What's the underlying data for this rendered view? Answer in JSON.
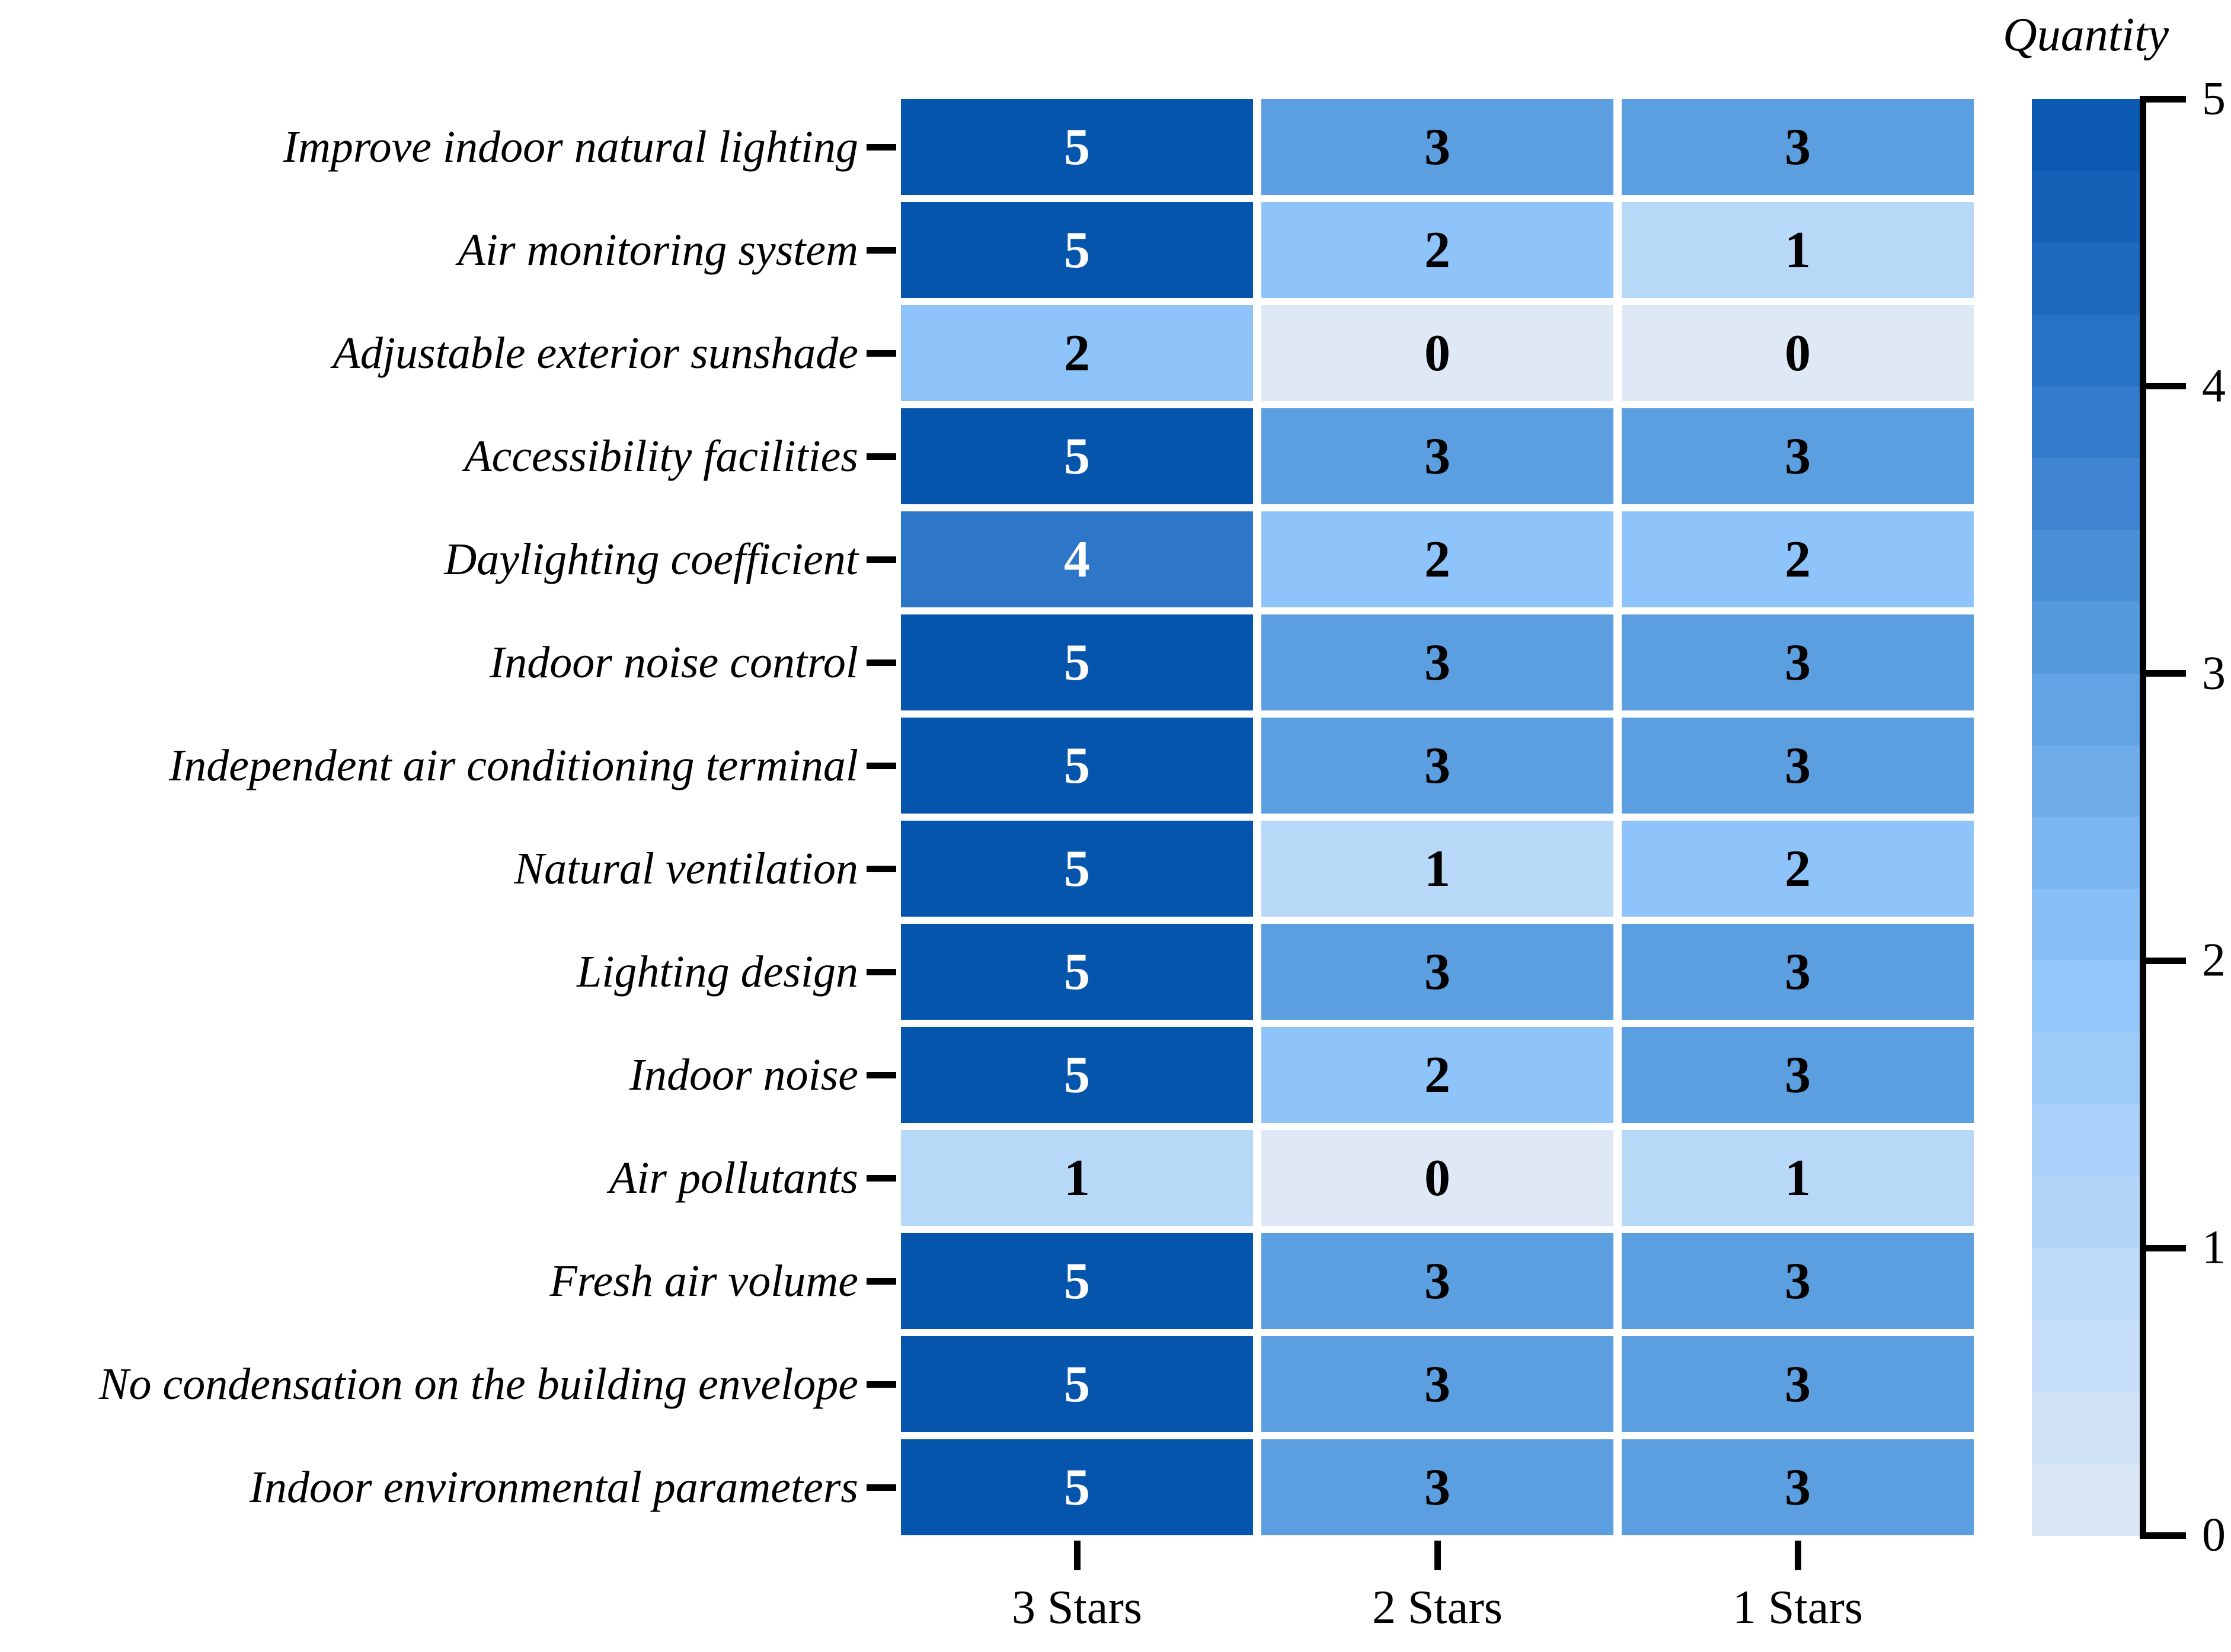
{
  "chart_data": {
    "type": "heatmap",
    "colorbar_label": "Quantity",
    "columns": [
      "3 Stars",
      "2 Stars",
      "1 Stars"
    ],
    "rows": [
      "Improve indoor natural lighting",
      "Air monitoring system",
      "Adjustable exterior sunshade",
      "Accessibility facilities",
      "Daylighting coefficient",
      "Indoor noise control",
      "Independent air conditioning terminal",
      "Natural ventilation",
      "Lighting design",
      "Indoor noise",
      "Air pollutants",
      "Fresh air volume",
      "No condensation on the building envelope",
      "Indoor environmental parameters"
    ],
    "values": [
      [
        5,
        3,
        3
      ],
      [
        5,
        2,
        1
      ],
      [
        2,
        0,
        0
      ],
      [
        5,
        3,
        3
      ],
      [
        4,
        2,
        2
      ],
      [
        5,
        3,
        3
      ],
      [
        5,
        3,
        3
      ],
      [
        5,
        1,
        2
      ],
      [
        5,
        3,
        3
      ],
      [
        5,
        2,
        3
      ],
      [
        1,
        0,
        1
      ],
      [
        5,
        3,
        3
      ],
      [
        5,
        3,
        3
      ],
      [
        5,
        3,
        3
      ]
    ],
    "vmin": 0,
    "vmax": 5,
    "colorbar_ticks": [
      "0",
      "1",
      "2",
      "3",
      "4",
      "5"
    ],
    "value_colors": {
      "0": "#dee9f5",
      "1": "#b8d8f8",
      "2": "#8fc4fa",
      "3": "#5c9fe0",
      "4": "#2d76c8",
      "5": "#0655ac"
    },
    "cell_text_light": "#ffffff",
    "cell_text_dark": "#000000",
    "legend_position": "right",
    "grid": false
  }
}
